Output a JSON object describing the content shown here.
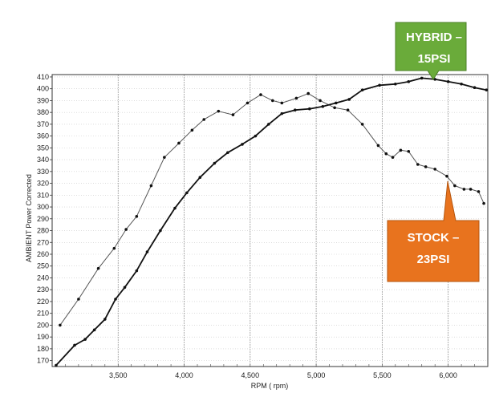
{
  "chart_data": {
    "type": "line",
    "title": "",
    "xlabel": "RPM ( rpm)",
    "ylabel": "AMBIENT Power Corrected",
    "xlim": [
      3000,
      6300
    ],
    "ylim": [
      165,
      412
    ],
    "x_ticks": [
      3500,
      4000,
      4500,
      5000,
      5500,
      6000
    ],
    "x_tick_labels": [
      "3,500",
      "4,000",
      "4,500",
      "5,000",
      "5,500",
      "6,000"
    ],
    "y_ticks": [
      170,
      180,
      190,
      200,
      210,
      220,
      230,
      240,
      250,
      260,
      270,
      280,
      290,
      300,
      310,
      320,
      330,
      340,
      350,
      360,
      370,
      380,
      390,
      400,
      410
    ],
    "grid": true,
    "series": [
      {
        "key": "stock",
        "color": "#555555",
        "x": [
          3060,
          3200,
          3350,
          3470,
          3560,
          3640,
          3750,
          3850,
          3960,
          4060,
          4150,
          4260,
          4370,
          4480,
          4580,
          4670,
          4740,
          4850,
          4940,
          5030,
          5140,
          5240,
          5350,
          5470,
          5530,
          5580,
          5640,
          5700,
          5770,
          5830,
          5900,
          5990,
          6050,
          6120,
          6170,
          6230,
          6270
        ],
        "y": [
          200,
          222,
          248,
          265,
          281,
          292,
          318,
          342,
          354,
          365,
          374,
          381,
          378,
          388,
          395,
          390,
          388,
          392,
          396,
          390,
          384,
          382,
          370,
          352,
          345,
          342,
          348,
          347,
          336,
          334,
          332,
          326,
          318,
          315,
          315,
          313,
          303
        ]
      },
      {
        "key": "hybrid",
        "color": "#111111",
        "x": [
          3030,
          3170,
          3250,
          3320,
          3400,
          3480,
          3550,
          3640,
          3720,
          3820,
          3930,
          4020,
          4120,
          4230,
          4330,
          4440,
          4540,
          4640,
          4740,
          4840,
          4950,
          5050,
          5150,
          5250,
          5350,
          5480,
          5600,
          5700,
          5800,
          5900,
          6000,
          6100,
          6200,
          6290
        ],
        "y": [
          166,
          183,
          188,
          196,
          205,
          222,
          232,
          246,
          262,
          280,
          299,
          312,
          325,
          337,
          346,
          353,
          360,
          370,
          379,
          382,
          383,
          385,
          388,
          391,
          399,
          403,
          404,
          406,
          409,
          408,
          406,
          404,
          401,
          399
        ]
      }
    ],
    "annotations": [
      {
        "key": "hybrid",
        "lines": [
          "HYBRID –",
          "15PSI"
        ],
        "color": "#6aab3a"
      },
      {
        "key": "stock",
        "lines": [
          "STOCK –",
          "23PSI"
        ],
        "color": "#e8731e"
      }
    ]
  }
}
